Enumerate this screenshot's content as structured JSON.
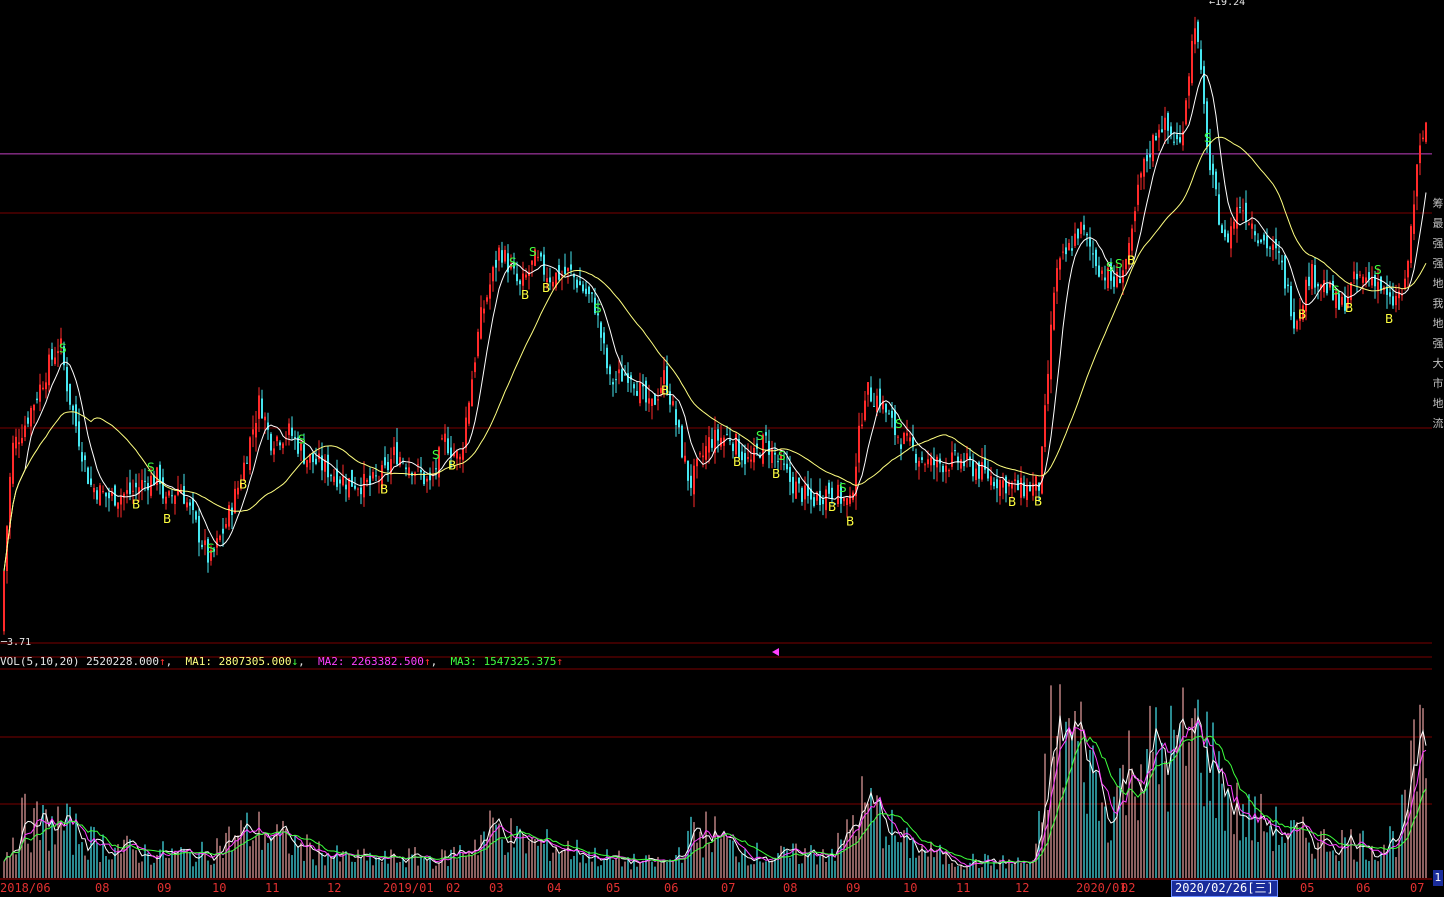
{
  "colors": {
    "up": "#ff2a2a",
    "down": "#46e6f0",
    "ma_short": "#ffffff",
    "ma_long": "#ffff80",
    "vol_ma1": "#ffffff",
    "vol_ma2": "#ff40ff",
    "vol_ma3": "#3cff3c",
    "ref_line": "#c040c0",
    "grid": "#7a0000",
    "buy": "#ffff40",
    "sell": "#40ff40",
    "axis_text": "#e03030"
  },
  "price_panel": {
    "min_label": "3.71",
    "max_label": "19.24",
    "reference_line": 15.6
  },
  "volume_panel": {
    "header": {
      "name": "VOL(5,10,20)",
      "vol_value": "2520228.000",
      "vol_arrow": "↑",
      "ma1_label": "MA1:",
      "ma1_value": "2807305.000",
      "ma1_arrow": "↓",
      "ma2_label": "MA2:",
      "ma2_value": "2263382.500",
      "ma2_arrow": "↑",
      "ma3_label": "MA3:",
      "ma3_value": "1547325.375",
      "ma3_arrow": "↑"
    }
  },
  "x_axis": {
    "ticks": [
      "2018/06",
      "08",
      "09",
      "10",
      "11",
      "12",
      "2019/01",
      "02",
      "03",
      "04",
      "05",
      "06",
      "07",
      "08",
      "09",
      "10",
      "11",
      "12",
      "2020/01",
      "02",
      "2020/02/26[三]",
      "05",
      "06",
      "07"
    ],
    "highlight": "2020/02/26[三]"
  },
  "side_tabs": [
    "筹",
    "最",
    "强",
    "强",
    "地",
    "我",
    "地",
    "强",
    "大",
    "市",
    "地",
    "流"
  ],
  "side_nav_label": "1",
  "chart_data": {
    "type": "candlestick",
    "y_range_price": [
      3.71,
      19.24
    ],
    "price_anchors": [
      [
        0,
        3.9
      ],
      [
        12,
        8.4
      ],
      [
        25,
        9.0
      ],
      [
        50,
        10.5
      ],
      [
        60,
        11.0
      ],
      [
        68,
        9.8
      ],
      [
        90,
        7.5
      ],
      [
        108,
        7.2
      ],
      [
        130,
        7.3
      ],
      [
        145,
        7.6
      ],
      [
        160,
        7.7
      ],
      [
        165,
        7.0
      ],
      [
        180,
        7.5
      ],
      [
        210,
        5.6
      ],
      [
        225,
        6.5
      ],
      [
        240,
        7.6
      ],
      [
        260,
        9.6
      ],
      [
        270,
        8.6
      ],
      [
        290,
        8.8
      ],
      [
        305,
        8.2
      ],
      [
        320,
        8.0
      ],
      [
        345,
        7.6
      ],
      [
        370,
        7.5
      ],
      [
        385,
        7.8
      ],
      [
        395,
        8.3
      ],
      [
        415,
        7.9
      ],
      [
        430,
        7.5
      ],
      [
        445,
        8.6
      ],
      [
        460,
        8.1
      ],
      [
        480,
        11.5
      ],
      [
        500,
        13.3
      ],
      [
        520,
        12.3
      ],
      [
        535,
        13.0
      ],
      [
        550,
        12.6
      ],
      [
        570,
        12.7
      ],
      [
        595,
        11.9
      ],
      [
        610,
        10.0
      ],
      [
        630,
        10.3
      ],
      [
        650,
        9.3
      ],
      [
        665,
        10.2
      ],
      [
        690,
        7.5
      ],
      [
        710,
        8.6
      ],
      [
        730,
        8.7
      ],
      [
        750,
        8.0
      ],
      [
        765,
        8.6
      ],
      [
        790,
        7.6
      ],
      [
        810,
        7.1
      ],
      [
        830,
        7.4
      ],
      [
        850,
        7.0
      ],
      [
        865,
        9.8
      ],
      [
        880,
        9.6
      ],
      [
        895,
        8.8
      ],
      [
        915,
        8.3
      ],
      [
        930,
        8.0
      ],
      [
        960,
        8.1
      ],
      [
        990,
        7.7
      ],
      [
        1020,
        7.4
      ],
      [
        1040,
        7.5
      ],
      [
        1055,
        12.6
      ],
      [
        1080,
        13.8
      ],
      [
        1100,
        12.8
      ],
      [
        1115,
        12.4
      ],
      [
        1130,
        13.2
      ],
      [
        1140,
        15.0
      ],
      [
        1160,
        16.4
      ],
      [
        1180,
        15.8
      ],
      [
        1195,
        18.9
      ],
      [
        1210,
        15.2
      ],
      [
        1225,
        13.4
      ],
      [
        1240,
        14.4
      ],
      [
        1260,
        13.6
      ],
      [
        1280,
        13.0
      ],
      [
        1295,
        11.5
      ],
      [
        1310,
        12.7
      ],
      [
        1325,
        12.4
      ],
      [
        1340,
        11.8
      ],
      [
        1355,
        12.5
      ],
      [
        1375,
        12.6
      ],
      [
        1390,
        11.9
      ],
      [
        1405,
        12.3
      ],
      [
        1418,
        15.4
      ],
      [
        1428,
        16.6
      ]
    ],
    "volume_anchors": [
      [
        0,
        8
      ],
      [
        20,
        55
      ],
      [
        40,
        50
      ],
      [
        60,
        52
      ],
      [
        90,
        35
      ],
      [
        140,
        25
      ],
      [
        200,
        22
      ],
      [
        245,
        45
      ],
      [
        265,
        45
      ],
      [
        300,
        30
      ],
      [
        340,
        20
      ],
      [
        380,
        18
      ],
      [
        410,
        20
      ],
      [
        440,
        18
      ],
      [
        470,
        30
      ],
      [
        495,
        50
      ],
      [
        520,
        35
      ],
      [
        560,
        30
      ],
      [
        600,
        20
      ],
      [
        640,
        15
      ],
      [
        670,
        15
      ],
      [
        690,
        40
      ],
      [
        710,
        45
      ],
      [
        730,
        30
      ],
      [
        770,
        20
      ],
      [
        820,
        25
      ],
      [
        840,
        30
      ],
      [
        860,
        70
      ],
      [
        880,
        60
      ],
      [
        900,
        35
      ],
      [
        950,
        18
      ],
      [
        1000,
        15
      ],
      [
        1035,
        15
      ],
      [
        1050,
        130
      ],
      [
        1070,
        140
      ],
      [
        1090,
        110
      ],
      [
        1105,
        60
      ],
      [
        1120,
        90
      ],
      [
        1140,
        120
      ],
      [
        1160,
        115
      ],
      [
        1180,
        125
      ],
      [
        1200,
        140
      ],
      [
        1220,
        90
      ],
      [
        1240,
        60
      ],
      [
        1260,
        55
      ],
      [
        1280,
        45
      ],
      [
        1300,
        40
      ],
      [
        1320,
        35
      ],
      [
        1350,
        35
      ],
      [
        1380,
        30
      ],
      [
        1400,
        45
      ],
      [
        1418,
        120
      ],
      [
        1428,
        100
      ]
    ],
    "buy_signals": [
      136,
      167,
      243,
      384,
      452,
      525,
      546,
      665,
      737,
      776,
      832,
      850,
      1012,
      1038,
      1131,
      1302,
      1349,
      1389
    ],
    "sell_signals": [
      63,
      151,
      211,
      302,
      436,
      513,
      533,
      598,
      760,
      782,
      843,
      899,
      1110,
      1119,
      1208,
      1336,
      1378
    ]
  }
}
